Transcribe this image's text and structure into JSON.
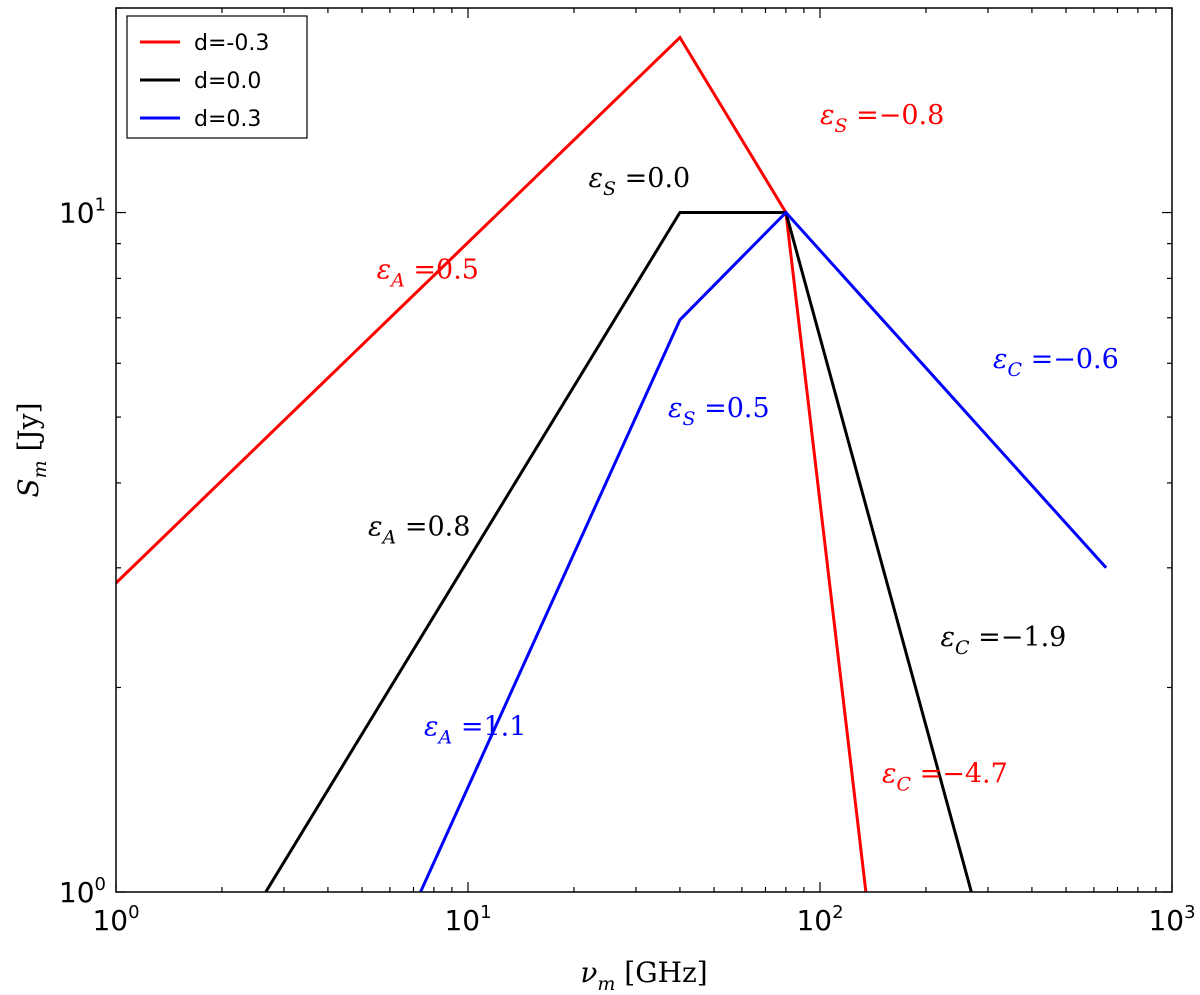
{
  "chart_data": {
    "type": "line",
    "xscale": "log",
    "yscale": "log",
    "xlim": [
      1,
      1000
    ],
    "ylim": [
      1,
      20
    ],
    "xlabel": {
      "sym": "ν",
      "sub": "m",
      "unit": "[GHz]"
    },
    "ylabel": {
      "sym": "S",
      "sub": "m",
      "unit": "[Jy]"
    },
    "x_ticks": [
      {
        "value": 1,
        "base": "10",
        "exp": "0"
      },
      {
        "value": 10,
        "base": "10",
        "exp": "1"
      },
      {
        "value": 100,
        "base": "10",
        "exp": "2"
      },
      {
        "value": 1000,
        "base": "10",
        "exp": "3"
      }
    ],
    "y_ticks": [
      {
        "value": 1,
        "base": "10",
        "exp": "0"
      },
      {
        "value": 10,
        "base": "10",
        "exp": "1"
      }
    ],
    "grid": false,
    "legend_position": "top-left",
    "series": [
      {
        "name": "d=-0.3",
        "color": "#ff0000",
        "points": [
          [
            1,
            2.85
          ],
          [
            40,
            18.1
          ],
          [
            80,
            10.0
          ],
          [
            135,
            1.0
          ]
        ]
      },
      {
        "name": "d=0.0",
        "color": "#000000",
        "points": [
          [
            2.6,
            0.98
          ],
          [
            40,
            10.0
          ],
          [
            80,
            10.0
          ],
          [
            272,
            0.98
          ]
        ]
      },
      {
        "name": "d=0.3",
        "color": "#0000ff",
        "points": [
          [
            7.2,
            0.98
          ],
          [
            40,
            6.95
          ],
          [
            80,
            10.0
          ],
          [
            650,
            3.0
          ]
        ]
      }
    ],
    "annotations": [
      {
        "greek": "ε",
        "sub": "A",
        "text": " =0.5",
        "color": "#ff0000",
        "x": 5.5,
        "y": 8.0
      },
      {
        "greek": "ε",
        "sub": "S",
        "text": " =−0.8",
        "color": "#ff0000",
        "x": 100,
        "y": 13.5
      },
      {
        "greek": "ε",
        "sub": "C",
        "text": " =−4.7",
        "color": "#ff0000",
        "x": 150,
        "y": 1.45
      },
      {
        "greek": "ε",
        "sub": "S",
        "text": " =0.0",
        "color": "#000000",
        "x": 22,
        "y": 10.9
      },
      {
        "greek": "ε",
        "sub": "A",
        "text": " =0.8",
        "color": "#000000",
        "x": 5.2,
        "y": 3.35
      },
      {
        "greek": "ε",
        "sub": "C",
        "text": " =−1.9",
        "color": "#000000",
        "x": 220,
        "y": 2.3
      },
      {
        "greek": "ε",
        "sub": "A",
        "text": " =1.1",
        "color": "#0000ff",
        "x": 7.5,
        "y": 1.7
      },
      {
        "greek": "ε",
        "sub": "S",
        "text": " =0.5",
        "color": "#0000ff",
        "x": 37,
        "y": 5.0
      },
      {
        "greek": "ε",
        "sub": "C",
        "text": " =−0.6",
        "color": "#0000ff",
        "x": 310,
        "y": 5.9
      }
    ]
  }
}
